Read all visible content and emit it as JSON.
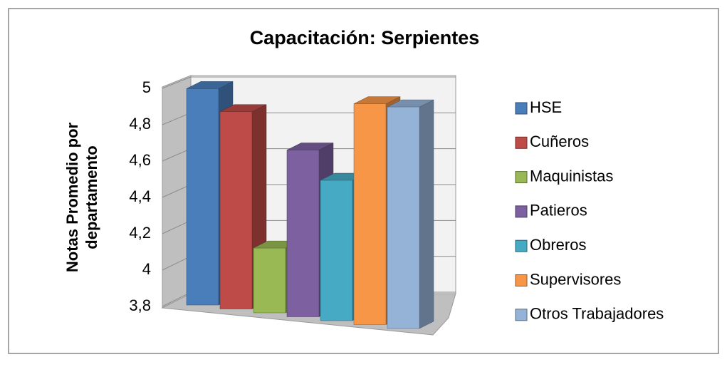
{
  "chart_data": {
    "type": "bar3d",
    "title": "Capacitación: Serpientes",
    "y_label": [
      "Notas Promedio por",
      "departamento"
    ],
    "categories": [
      null
    ],
    "series": [
      {
        "name": "HSE",
        "color": "#4a7ebb",
        "values": [
          5.0
        ]
      },
      {
        "name": "Cuñeros",
        "color": "#be4b48",
        "values": [
          4.88
        ]
      },
      {
        "name": "Maquinistas",
        "color": "#98b954",
        "values": [
          4.15
        ]
      },
      {
        "name": "Patieros",
        "color": "#7d60a0",
        "values": [
          4.69
        ]
      },
      {
        "name": "Obreros",
        "color": "#46aac5",
        "values": [
          4.54
        ]
      },
      {
        "name": "Supervisores",
        "color": "#f79646",
        "values": [
          4.95
        ]
      },
      {
        "name": "Otros Trabajadores",
        "color": "#95b3d7",
        "values": [
          4.94
        ]
      }
    ],
    "ylim": [
      3.8,
      5
    ],
    "yticks": [
      {
        "value": 3.8,
        "label": "3,8"
      },
      4,
      {
        "value": 4.2,
        "label": "4,2"
      },
      {
        "value": 4.4,
        "label": "4,4"
      },
      {
        "value": 4.6,
        "label": "4,6"
      },
      {
        "value": 4.8,
        "label": "4,8"
      },
      5
    ],
    "grid": true,
    "legend": "right"
  }
}
